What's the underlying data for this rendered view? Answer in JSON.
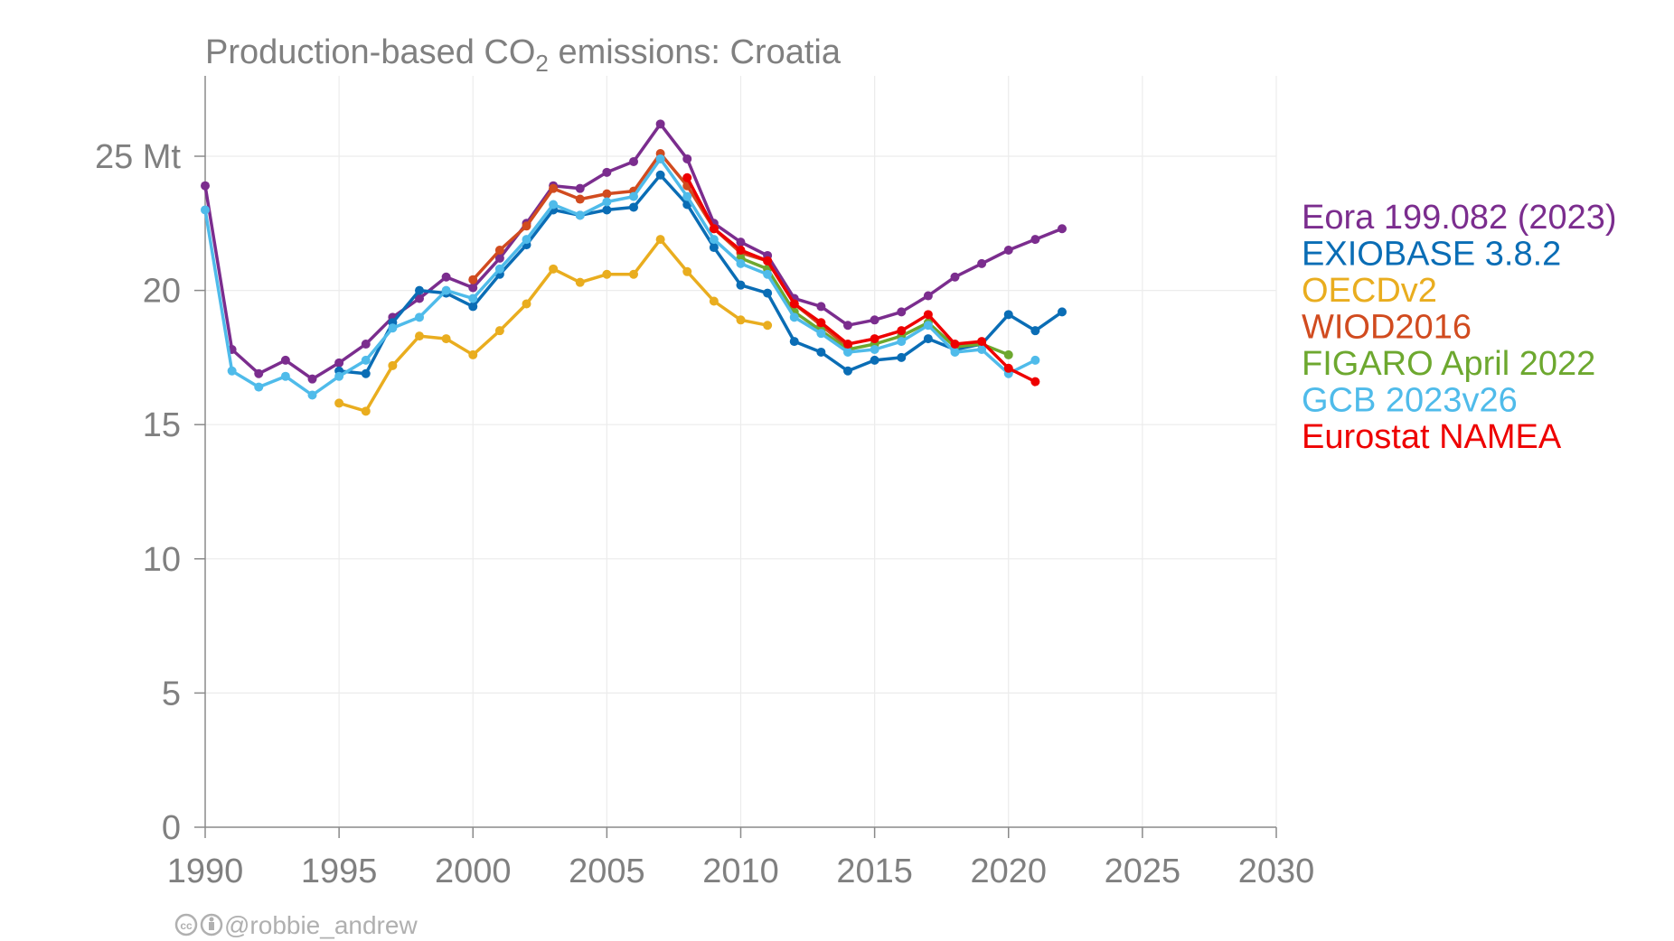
{
  "chart_data": {
    "type": "line",
    "title": "Production-based CO",
    "title_sub": "2",
    "title_suffix": " emissions: Croatia",
    "xlim": [
      1990,
      2030
    ],
    "ylim": [
      0,
      28
    ],
    "x_ticks": [
      1990,
      1995,
      2000,
      2005,
      2010,
      2015,
      2020,
      2025,
      2030
    ],
    "x_tick_labels": [
      "1990",
      "1995",
      "2000",
      "2005",
      "2010",
      "2015",
      "2020",
      "2025",
      "2030"
    ],
    "y_ticks": [
      0,
      5,
      10,
      15,
      20,
      25
    ],
    "y_tick_labels": [
      "0",
      "5",
      "10",
      "15",
      "20",
      "25 Mt"
    ],
    "grid": true,
    "legend_position": "right",
    "series": [
      {
        "name": "Eora 199.082 (2023)",
        "color": "#7b2d8e",
        "x": [
          1990,
          1991,
          1992,
          1993,
          1994,
          1995,
          1996,
          1997,
          1998,
          1999,
          2000,
          2001,
          2002,
          2003,
          2004,
          2005,
          2006,
          2007,
          2008,
          2009,
          2010,
          2011,
          2012,
          2013,
          2014,
          2015,
          2016,
          2017,
          2018,
          2019,
          2020,
          2021,
          2022
        ],
        "y": [
          23.9,
          17.8,
          16.9,
          17.4,
          16.7,
          17.3,
          18.0,
          19.0,
          19.7,
          20.5,
          20.1,
          21.2,
          22.5,
          23.9,
          23.8,
          24.4,
          24.8,
          26.2,
          24.9,
          22.5,
          21.8,
          21.3,
          19.7,
          19.4,
          18.7,
          18.9,
          19.2,
          19.8,
          20.5,
          21.0,
          21.5,
          21.9,
          22.3
        ]
      },
      {
        "name": "EXIOBASE 3.8.2",
        "color": "#0a6db5",
        "x": [
          1995,
          1996,
          1997,
          1998,
          1999,
          2000,
          2001,
          2002,
          2003,
          2004,
          2005,
          2006,
          2007,
          2008,
          2009,
          2010,
          2011,
          2012,
          2013,
          2014,
          2015,
          2016,
          2017,
          2018,
          2019,
          2020,
          2021,
          2022
        ],
        "y": [
          17.0,
          16.9,
          18.8,
          20.0,
          19.9,
          19.4,
          20.6,
          21.7,
          23.0,
          22.8,
          23.0,
          23.1,
          24.3,
          23.2,
          21.6,
          20.2,
          19.9,
          18.1,
          17.7,
          17.0,
          17.4,
          17.5,
          18.2,
          17.8,
          18.0,
          19.1,
          18.5,
          19.2
        ]
      },
      {
        "name": "OECDv2",
        "color": "#e9ad1f",
        "x": [
          1995,
          1996,
          1997,
          1998,
          1999,
          2000,
          2001,
          2002,
          2003,
          2004,
          2005,
          2006,
          2007,
          2008,
          2009,
          2010,
          2011
        ],
        "y": [
          15.8,
          15.5,
          17.2,
          18.3,
          18.2,
          17.6,
          18.5,
          19.5,
          20.8,
          20.3,
          20.6,
          20.6,
          21.9,
          20.7,
          19.6,
          18.9,
          18.7
        ]
      },
      {
        "name": "WIOD2016",
        "color": "#d14b1f",
        "x": [
          2000,
          2001,
          2002,
          2003,
          2004,
          2005,
          2006,
          2007,
          2008,
          2009,
          2010,
          2011,
          2012,
          2013,
          2014
        ],
        "y": [
          20.4,
          21.5,
          22.4,
          23.8,
          23.4,
          23.6,
          23.7,
          25.1,
          23.9,
          22.3,
          21.4,
          21.1,
          19.5,
          18.7,
          17.9
        ]
      },
      {
        "name": "FIGARO April 2022",
        "color": "#6da82f",
        "x": [
          2010,
          2011,
          2012,
          2013,
          2014,
          2015,
          2016,
          2017,
          2018,
          2019,
          2020
        ],
        "y": [
          21.2,
          20.8,
          19.2,
          18.5,
          17.8,
          18.0,
          18.3,
          18.8,
          17.9,
          18.0,
          17.6
        ]
      },
      {
        "name": "GCB 2023v26",
        "color": "#4fbbea",
        "x": [
          1990,
          1991,
          1992,
          1993,
          1994,
          1995,
          1996,
          1997,
          1998,
          1999,
          2000,
          2001,
          2002,
          2003,
          2004,
          2005,
          2006,
          2007,
          2008,
          2009,
          2010,
          2011,
          2012,
          2013,
          2014,
          2015,
          2016,
          2017,
          2018,
          2019,
          2020,
          2021
        ],
        "y": [
          23.0,
          17.0,
          16.4,
          16.8,
          16.1,
          16.8,
          17.4,
          18.6,
          19.0,
          20.0,
          19.7,
          20.8,
          21.9,
          23.2,
          22.8,
          23.3,
          23.5,
          24.9,
          23.5,
          21.9,
          21.0,
          20.6,
          19.0,
          18.4,
          17.7,
          17.8,
          18.1,
          18.7,
          17.7,
          17.8,
          16.9,
          17.4
        ]
      },
      {
        "name": "Eurostat NAMEA",
        "color": "#ee0000",
        "x": [
          2008,
          2009,
          2010,
          2011,
          2012,
          2013,
          2014,
          2015,
          2016,
          2017,
          2018,
          2019,
          2020,
          2021
        ],
        "y": [
          24.2,
          22.3,
          21.5,
          21.1,
          19.5,
          18.8,
          18.0,
          18.2,
          18.5,
          19.1,
          18.0,
          18.1,
          17.1,
          16.6
        ]
      }
    ]
  },
  "credit": {
    "cc_icon": "cc-icon",
    "by_icon": "attribution-icon",
    "text": "@robbie_andrew"
  }
}
